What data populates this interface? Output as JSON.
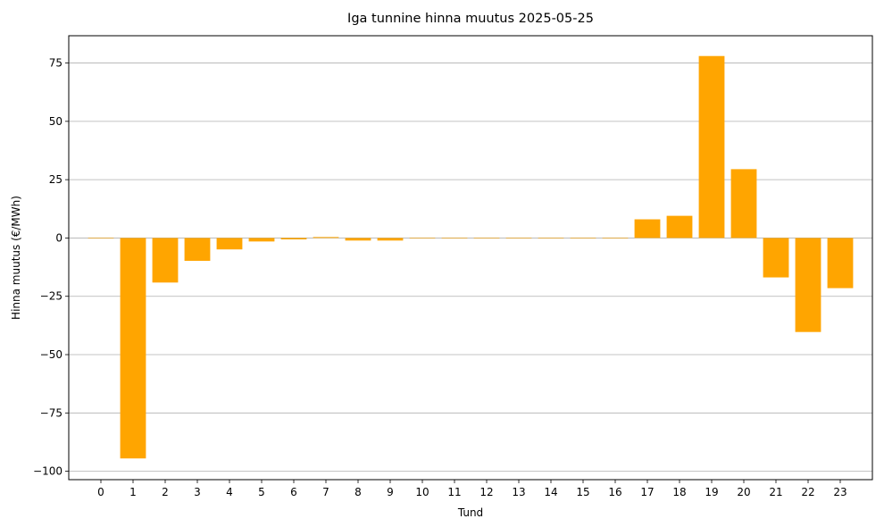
{
  "chart_data": {
    "type": "bar",
    "title": "Iga tunnine hinna muutus 2025-05-25",
    "xlabel": "Tund",
    "ylabel": "Hinna muutus (€/MWh)",
    "categories": [
      "0",
      "1",
      "2",
      "3",
      "4",
      "5",
      "6",
      "7",
      "8",
      "9",
      "10",
      "11",
      "12",
      "13",
      "14",
      "15",
      "16",
      "17",
      "18",
      "19",
      "20",
      "21",
      "22",
      "23"
    ],
    "values": [
      0,
      -94.5,
      -19.1,
      -9.8,
      -4.9,
      -1.5,
      -0.6,
      0.4,
      -1.1,
      -1.1,
      0,
      0,
      0,
      0,
      0,
      0,
      0,
      8.0,
      9.5,
      78.0,
      29.5,
      -16.9,
      -40.3,
      -21.5
    ],
    "ylim": [
      -103.6,
      86.7
    ],
    "yticks": [
      -100,
      -75,
      -50,
      -25,
      0,
      25,
      50,
      75
    ],
    "ytick_labels": [
      "−100",
      "−75",
      "−50",
      "−25",
      "0",
      "25",
      "50",
      "75"
    ],
    "bar_color": "#FFA500",
    "grid": "horizontal",
    "legend": "none"
  }
}
